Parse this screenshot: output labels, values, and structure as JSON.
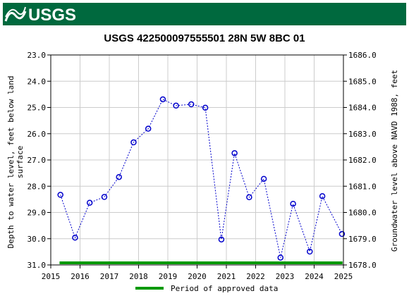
{
  "header": {
    "logo_text": "USGS",
    "banner_color": "#00693e"
  },
  "chart_data": {
    "type": "scatter",
    "title": "USGS 422500097555501 28N 5W 8BC  01",
    "ylabel_left": [
      "Depth to water level, feet below land",
      "surface"
    ],
    "ylabel_right": "Groundwater level above NAVD 1988, feet",
    "x_ticks": [
      "2015",
      "2016",
      "2017",
      "2018",
      "2019",
      "2020",
      "2021",
      "2022",
      "2023",
      "2024",
      "2025"
    ],
    "xlim": [
      2015,
      2025
    ],
    "y_left_ticks": [
      "23.0",
      "24.0",
      "25.0",
      "26.0",
      "27.0",
      "28.0",
      "29.0",
      "30.0",
      "31.0"
    ],
    "ylim_left": [
      23.0,
      31.0
    ],
    "y_left_inverted": true,
    "y_right_ticks": [
      "1686.0",
      "1685.0",
      "1684.0",
      "1683.0",
      "1682.0",
      "1681.0",
      "1680.0",
      "1679.0",
      "1678.0"
    ],
    "ylim_right": [
      1678.0,
      1686.0
    ],
    "grid": true,
    "series": [
      {
        "marker_color": "#0000cc",
        "line_style": "dashed",
        "x": [
          2015.33,
          2015.83,
          2016.33,
          2016.83,
          2017.33,
          2017.83,
          2018.33,
          2018.83,
          2019.28,
          2019.8,
          2020.28,
          2020.83,
          2021.28,
          2021.78,
          2022.28,
          2022.85,
          2023.28,
          2023.85,
          2024.28,
          2024.95
        ],
        "y": [
          28.33,
          29.96,
          28.63,
          28.41,
          27.65,
          26.33,
          25.81,
          24.69,
          24.93,
          24.88,
          25.01,
          30.03,
          26.74,
          28.42,
          27.72,
          30.72,
          28.67,
          30.49,
          28.38,
          29.82
        ]
      }
    ],
    "approved_period": [
      2015.3,
      2024.97
    ],
    "approved_color": "#009900",
    "legend_label": "Period of approved data",
    "legend_position": "bottom-center"
  }
}
